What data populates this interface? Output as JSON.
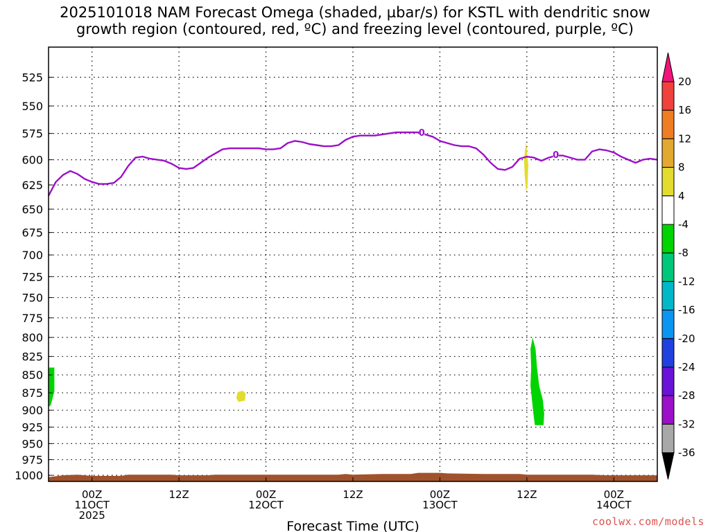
{
  "title_line1": "2025101018 NAM Forecast Omega (shaded, µbar/s) for KSTL with dendritic snow",
  "title_line2": "growth region (contoured, red, ºC) and freezing level (contoured, purple, ºC)",
  "credit": "coolwx.com/models",
  "chart_data": {
    "type": "heatmap",
    "xlabel": "Forecast Time (UTC)",
    "ylabel": "",
    "x_unit": "hours from 2025-10-10 18Z",
    "xlim": [
      0,
      84
    ],
    "ylim": [
      500,
      1010
    ],
    "y_scale": "log-pressure (inverted)",
    "y_ticks": [
      525,
      550,
      575,
      600,
      625,
      650,
      675,
      700,
      725,
      750,
      775,
      800,
      825,
      850,
      875,
      900,
      925,
      950,
      975,
      1000
    ],
    "x_ticks": [
      {
        "x": 6,
        "line1": "00Z",
        "line2": "11OCT",
        "line3": "2025"
      },
      {
        "x": 18,
        "line1": "12Z",
        "line2": "",
        "line3": ""
      },
      {
        "x": 30,
        "line1": "00Z",
        "line2": "12OCT",
        "line3": ""
      },
      {
        "x": 42,
        "line1": "12Z",
        "line2": "",
        "line3": ""
      },
      {
        "x": 54,
        "line1": "00Z",
        "line2": "13OCT",
        "line3": ""
      },
      {
        "x": 66,
        "line1": "12Z",
        "line2": "",
        "line3": ""
      },
      {
        "x": 78,
        "line1": "00Z",
        "line2": "14OCT",
        "line3": ""
      }
    ],
    "grid": true,
    "freezing_level": {
      "color": "#9b10c8",
      "label": "0",
      "points": [
        [
          0,
          636
        ],
        [
          1,
          622
        ],
        [
          2,
          615
        ],
        [
          3,
          611
        ],
        [
          4,
          614
        ],
        [
          5,
          619
        ],
        [
          6,
          622
        ],
        [
          7,
          624
        ],
        [
          8,
          624
        ],
        [
          9,
          623
        ],
        [
          10,
          617
        ],
        [
          11,
          606
        ],
        [
          12,
          598
        ],
        [
          13,
          597
        ],
        [
          14,
          599
        ],
        [
          15,
          600
        ],
        [
          16,
          601
        ],
        [
          17,
          604
        ],
        [
          18,
          608
        ],
        [
          19,
          609
        ],
        [
          20,
          608
        ],
        [
          21,
          603
        ],
        [
          22,
          598
        ],
        [
          23,
          594
        ],
        [
          24,
          590
        ],
        [
          25,
          589
        ],
        [
          26,
          589
        ],
        [
          27,
          589
        ],
        [
          28,
          589
        ],
        [
          29,
          589
        ],
        [
          30,
          590
        ],
        [
          31,
          590
        ],
        [
          32,
          589
        ],
        [
          33,
          584
        ],
        [
          34,
          582
        ],
        [
          35,
          583
        ],
        [
          36,
          585
        ],
        [
          37,
          586
        ],
        [
          38,
          587
        ],
        [
          39,
          587
        ],
        [
          40,
          586
        ],
        [
          41,
          581
        ],
        [
          42,
          578
        ],
        [
          43,
          577
        ],
        [
          44,
          577
        ],
        [
          45,
          577
        ],
        [
          46,
          576
        ],
        [
          47,
          575
        ],
        [
          48,
          574
        ],
        [
          49,
          574
        ],
        [
          50,
          574
        ],
        [
          51,
          574
        ],
        [
          52,
          576
        ],
        [
          53,
          578
        ],
        [
          54,
          582
        ],
        [
          55,
          584
        ],
        [
          56,
          586
        ],
        [
          57,
          587
        ],
        [
          58,
          587
        ],
        [
          59,
          589
        ],
        [
          60,
          595
        ],
        [
          61,
          603
        ],
        [
          62,
          609
        ],
        [
          63,
          610
        ],
        [
          64,
          607
        ],
        [
          65,
          599
        ],
        [
          66,
          597
        ],
        [
          67,
          598
        ],
        [
          68,
          601
        ],
        [
          69,
          598
        ],
        [
          70,
          596
        ],
        [
          71,
          596
        ],
        [
          72,
          598
        ],
        [
          73,
          600
        ],
        [
          74,
          600
        ],
        [
          75,
          592
        ],
        [
          76,
          590
        ],
        [
          77,
          591
        ],
        [
          78,
          593
        ],
        [
          79,
          597
        ],
        [
          80,
          600
        ],
        [
          81,
          603
        ],
        [
          82,
          600
        ],
        [
          83,
          599
        ],
        [
          84,
          600
        ]
      ],
      "label_positions": [
        [
          51.5,
          574
        ],
        [
          70,
          595
        ]
      ]
    },
    "omega_areas": [
      {
        "color": "#00d400",
        "range": "-8 to -4",
        "points": [
          [
            0,
            840
          ],
          [
            0.8,
            840
          ],
          [
            0.8,
            873
          ],
          [
            0.3,
            893
          ],
          [
            0,
            895
          ]
        ]
      },
      {
        "color": "#e2dc30",
        "range": "4 to 8",
        "points": [
          [
            26.1,
            874
          ],
          [
            26.8,
            872
          ],
          [
            27.2,
            876
          ],
          [
            27.1,
            886
          ],
          [
            26.2,
            888
          ],
          [
            25.9,
            882
          ]
        ]
      },
      {
        "color": "#e2dc30",
        "range": "4 to 8",
        "points": [
          [
            65.9,
            583
          ],
          [
            66.2,
            605
          ],
          [
            66.1,
            625
          ],
          [
            65.9,
            632
          ],
          [
            65.7,
            615
          ],
          [
            65.6,
            600
          ]
        ]
      },
      {
        "color": "#00d400",
        "range": "-8 to -4",
        "points": [
          [
            66.8,
            800
          ],
          [
            67.2,
            815
          ],
          [
            67.4,
            840
          ],
          [
            67.7,
            865
          ],
          [
            68.2,
            885
          ],
          [
            68.4,
            905
          ],
          [
            68.3,
            922
          ],
          [
            67.1,
            922
          ],
          [
            66.9,
            905
          ],
          [
            66.7,
            885
          ],
          [
            66.5,
            865
          ],
          [
            66.6,
            840
          ],
          [
            66.5,
            815
          ]
        ]
      }
    ],
    "terrain": {
      "color": "#a0522d",
      "points": [
        [
          0,
          1003
        ],
        [
          2,
          1000
        ],
        [
          4,
          999
        ],
        [
          5,
          1000
        ],
        [
          6,
          1001
        ],
        [
          8,
          1001
        ],
        [
          10,
          1001
        ],
        [
          11,
          999
        ],
        [
          14,
          999
        ],
        [
          17,
          999
        ],
        [
          18,
          1000
        ],
        [
          22,
          1000
        ],
        [
          23,
          999
        ],
        [
          28,
          999
        ],
        [
          31,
          999
        ],
        [
          40,
          999
        ],
        [
          41,
          998
        ],
        [
          42,
          999
        ],
        [
          46,
          998
        ],
        [
          50,
          998
        ],
        [
          51,
          996
        ],
        [
          54,
          996
        ],
        [
          55,
          997
        ],
        [
          60,
          998
        ],
        [
          65,
          998
        ],
        [
          66,
          999
        ],
        [
          70,
          999
        ],
        [
          75,
          999
        ],
        [
          77,
          1000
        ],
        [
          84,
          1000
        ]
      ]
    },
    "colorbar": {
      "labels": [
        "20",
        "16",
        "12",
        "8",
        "4",
        "-4",
        "-8",
        "-12",
        "-16",
        "-20",
        "-24",
        "-28",
        "-32",
        "-36"
      ],
      "colors": [
        "#f0147a",
        "#f0413c",
        "#ee7d23",
        "#e2a82f",
        "#e2dc30",
        "#ffffff",
        "#00d400",
        "#00c87a",
        "#00b8c8",
        "#0a96f0",
        "#2040e0",
        "#6a12d8",
        "#9b10c8",
        "#a8a8a8",
        "#000000"
      ]
    }
  }
}
